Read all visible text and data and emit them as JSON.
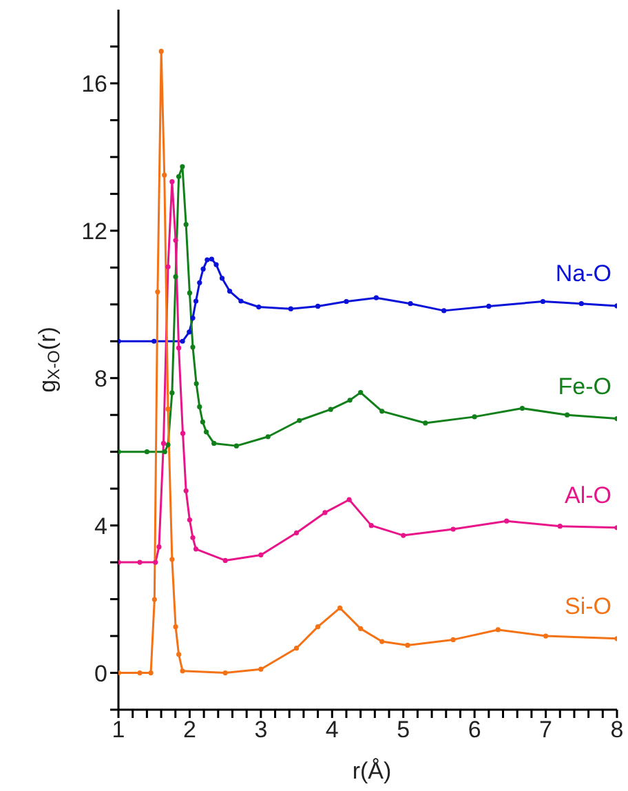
{
  "chart_data": {
    "type": "line",
    "xlabel": "r(Å)",
    "ylabel": "g$_{X-O}$(r)",
    "xlim": [
      1,
      8
    ],
    "ylim": [
      -1,
      18
    ],
    "xticks": [
      1,
      {
        "value": 1.2,
        "label": null
      },
      {
        "value": 1.4,
        "label": null
      },
      {
        "value": 1.6,
        "label": null
      },
      {
        "value": 1.8,
        "label": null
      },
      2,
      {
        "value": 2.2,
        "label": null
      },
      {
        "value": 2.4,
        "label": null
      },
      {
        "value": 2.6,
        "label": null
      },
      {
        "value": 2.8,
        "label": null
      },
      3,
      {
        "value": 3.2,
        "label": null
      },
      {
        "value": 3.4,
        "label": null
      },
      {
        "value": 3.6,
        "label": null
      },
      {
        "value": 3.8,
        "label": null
      },
      4,
      {
        "value": 4.2,
        "label": null
      },
      {
        "value": 4.4,
        "label": null
      },
      {
        "value": 4.6,
        "label": null
      },
      {
        "value": 4.8,
        "label": null
      },
      5,
      {
        "value": 5.2,
        "label": null
      },
      {
        "value": 5.4,
        "label": null
      },
      {
        "value": 5.6,
        "label": null
      },
      {
        "value": 5.8,
        "label": null
      },
      6,
      {
        "value": 6.2,
        "label": null
      },
      {
        "value": 6.4,
        "label": null
      },
      {
        "value": 6.6,
        "label": null
      },
      {
        "value": 6.8,
        "label": null
      },
      7,
      {
        "value": 7.2,
        "label": null
      },
      {
        "value": 7.4,
        "label": null
      },
      {
        "value": 7.6,
        "label": null
      },
      {
        "value": 7.8,
        "label": null
      },
      8
    ],
    "yticks": [
      {
        "value": -1,
        "label": null
      },
      0,
      {
        "value": 1,
        "label": null
      },
      {
        "value": 2,
        "label": null
      },
      {
        "value": 3,
        "label": null
      },
      4,
      {
        "value": 5,
        "label": null
      },
      {
        "value": 6,
        "label": null
      },
      {
        "value": 7,
        "label": null
      },
      8,
      {
        "value": 9,
        "label": null
      },
      {
        "value": 10,
        "label": null
      },
      {
        "value": 11,
        "label": null
      },
      12,
      {
        "value": 13,
        "label": null
      },
      {
        "value": 14,
        "label": null
      },
      {
        "value": 15,
        "label": null
      },
      16,
      {
        "value": 17,
        "label": null
      }
    ],
    "marker": "circle",
    "line_style": "solid",
    "series": [
      {
        "name": "Na-O",
        "color": "#0a12d8",
        "x": [
          1,
          1.5,
          1.9,
          1.994,
          2.044,
          2.088,
          2.139,
          2.19,
          2.246,
          2.309,
          2.373,
          2.455,
          2.562,
          2.72,
          2.97,
          3.42,
          3.8,
          4.2,
          4.62,
          5.1,
          5.57,
          6.2,
          6.96,
          7.5,
          8
        ],
        "values": [
          9,
          9,
          9,
          9.25,
          9.63,
          10.09,
          10.59,
          10.96,
          11.21,
          11.23,
          11.08,
          10.71,
          10.36,
          10.09,
          9.93,
          9.88,
          9.95,
          10.08,
          10.18,
          10.02,
          9.83,
          9.95,
          10.08,
          10.02,
          9.96
        ]
      },
      {
        "name": "Fe-O",
        "color": "#12801a",
        "x": [
          1,
          1.4,
          1.65,
          1.696,
          1.753,
          1.803,
          1.847,
          1.898,
          1.949,
          2.0,
          2.044,
          2.094,
          2.139,
          2.183,
          2.233,
          2.341,
          2.657,
          3.1,
          3.54,
          3.98,
          4.25,
          4.4,
          4.7,
          5.31,
          6.0,
          6.67,
          7.3,
          8
        ],
        "values": [
          6,
          6,
          6,
          6.19,
          7.6,
          10.75,
          13.47,
          13.74,
          12.17,
          10.31,
          8.84,
          7.85,
          7.22,
          6.81,
          6.54,
          6.23,
          6.16,
          6.41,
          6.85,
          7.15,
          7.4,
          7.61,
          7.1,
          6.78,
          6.95,
          7.18,
          7.0,
          6.9
        ]
      },
      {
        "name": "Al-O",
        "color": "#e8148a",
        "x": [
          1,
          1.3,
          1.52,
          1.57,
          1.633,
          1.696,
          1.753,
          1.803,
          1.847,
          1.904,
          1.949,
          2.0,
          2.044,
          2.088,
          2.5,
          3.0,
          3.5,
          3.9,
          4.24,
          4.55,
          5.0,
          5.7,
          6.45,
          7.2,
          8
        ],
        "values": [
          3,
          3,
          3,
          3.42,
          6.23,
          11.02,
          13.33,
          11.74,
          8.82,
          6.5,
          4.94,
          4.15,
          3.67,
          3.36,
          3.05,
          3.2,
          3.8,
          4.35,
          4.7,
          4.0,
          3.73,
          3.9,
          4.12,
          3.98,
          3.94
        ]
      },
      {
        "name": "Si-O",
        "color": "#f47216",
        "x": [
          1,
          1.3,
          1.455,
          1.506,
          1.55,
          1.601,
          1.645,
          1.696,
          1.753,
          1.803,
          1.847,
          1.9,
          2.5,
          3.0,
          3.5,
          3.8,
          4.11,
          4.4,
          4.7,
          5.06,
          5.7,
          6.33,
          7.0,
          8
        ],
        "values": [
          0,
          0,
          0,
          1.99,
          10.34,
          16.87,
          13.51,
          7.16,
          3.08,
          1.25,
          0.5,
          0.05,
          0,
          0.1,
          0.67,
          1.25,
          1.76,
          1.2,
          0.85,
          0.75,
          0.9,
          1.17,
          1.0,
          0.93
        ]
      }
    ]
  }
}
